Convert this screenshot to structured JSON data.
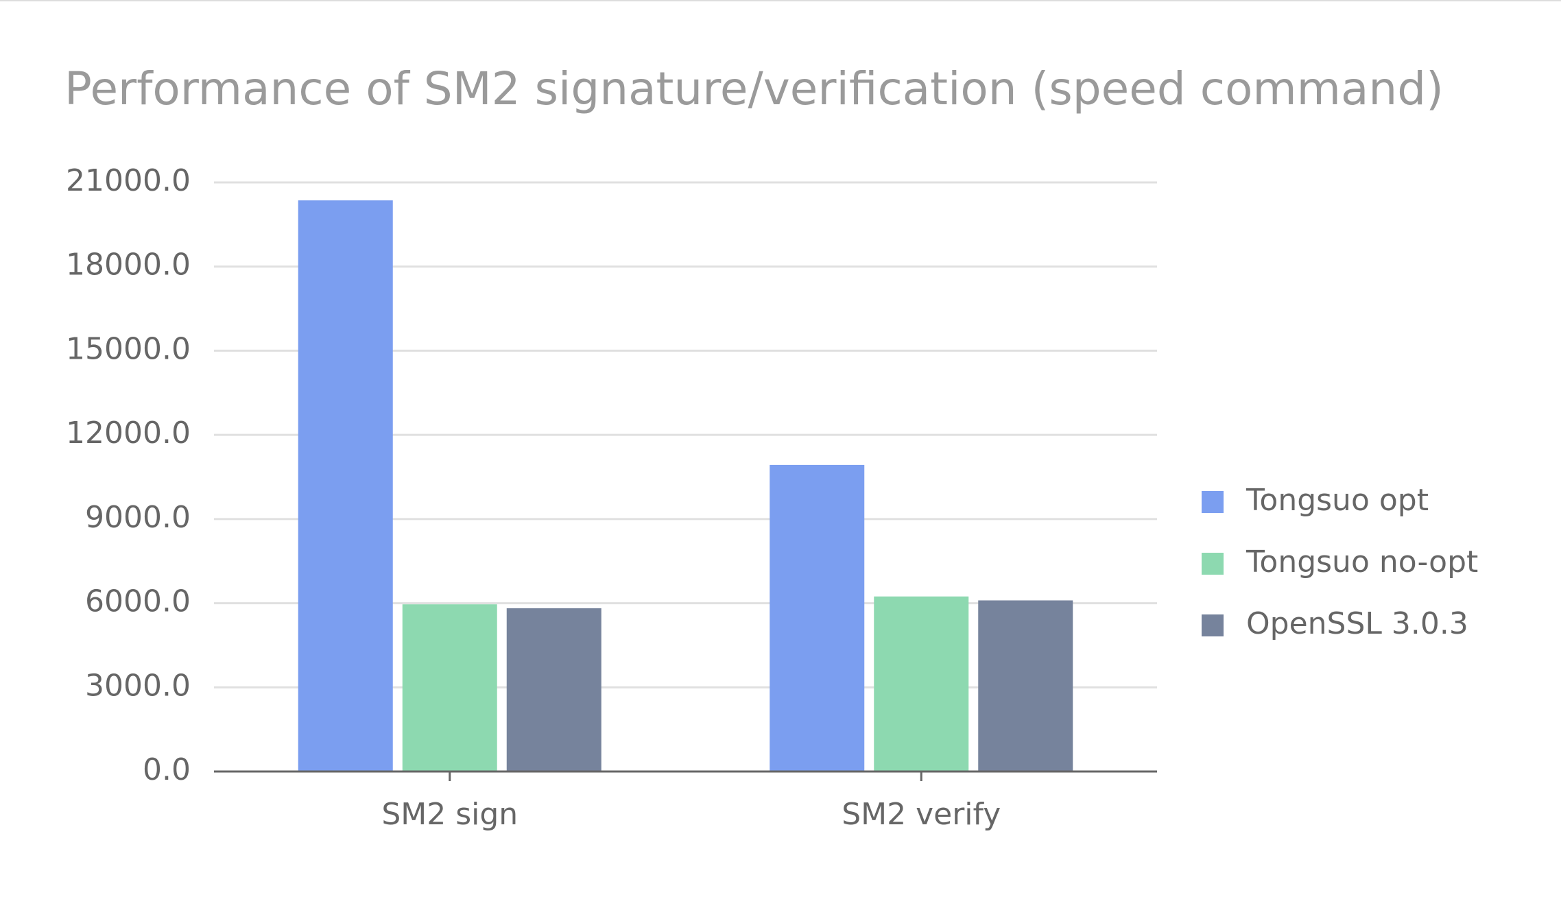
{
  "chart_data": {
    "type": "bar",
    "title": "Performance of SM2 signature/verification (speed command)",
    "categories": [
      "SM2 sign",
      "SM2 verify"
    ],
    "series": [
      {
        "name": "Tongsuo opt",
        "color": "#7b9ef0",
        "values": [
          20360,
          10930
        ]
      },
      {
        "name": "Tongsuo no-opt",
        "color": "#8dd9b0",
        "values": [
          5960,
          6240
        ]
      },
      {
        "name": "OpenSSL 3.0.3",
        "color": "#76839c",
        "values": [
          5820,
          6100
        ]
      }
    ],
    "ylim": [
      0,
      21000
    ],
    "yticks": [
      {
        "value": 0,
        "label": "0.0"
      },
      {
        "value": 3000,
        "label": "3000.0"
      },
      {
        "value": 6000,
        "label": "6000.0"
      },
      {
        "value": 9000,
        "label": "9000.0"
      },
      {
        "value": 12000,
        "label": "12000.0"
      },
      {
        "value": 15000,
        "label": "15000.0"
      },
      {
        "value": 18000,
        "label": "18000.0"
      },
      {
        "value": 21000,
        "label": "21000.0"
      }
    ],
    "grid": true,
    "legend": "right"
  }
}
